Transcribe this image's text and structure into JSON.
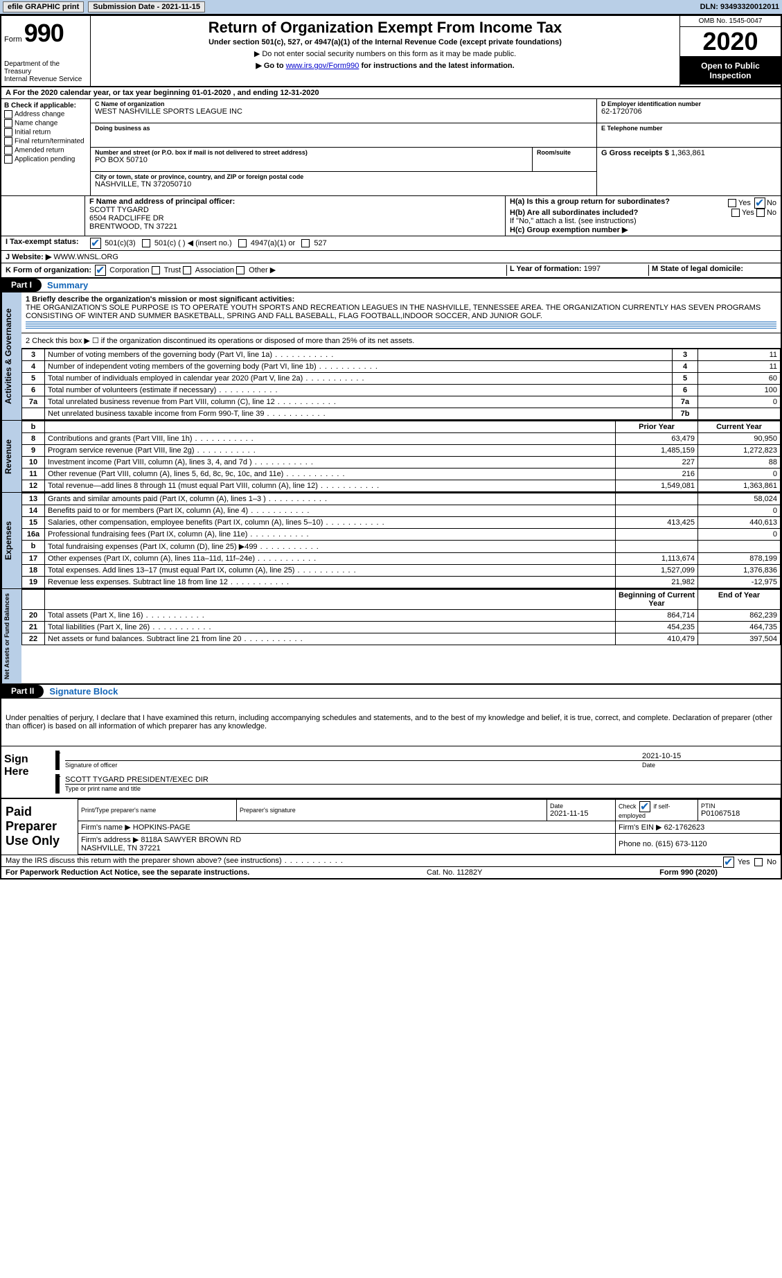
{
  "topbar": {
    "efile": "efile GRAPHIC print",
    "submission_lbl": "Submission Date - 2021-11-15",
    "dln_lbl": "DLN: 93493320012011"
  },
  "header": {
    "form_prefix": "Form",
    "form_no": "990",
    "dept": "Department of the Treasury\nInternal Revenue Service",
    "title": "Return of Organization Exempt From Income Tax",
    "subtitle": "Under section 501(c), 527, or 4947(a)(1) of the Internal Revenue Code (except private foundations)",
    "note1": "▶ Do not enter social security numbers on this form as it may be made public.",
    "note2_pre": "▶ Go to ",
    "note2_link": "www.irs.gov/Form990",
    "note2_post": " for instructions and the latest information.",
    "omb": "OMB No. 1545-0047",
    "year": "2020",
    "open_public": "Open to Public Inspection"
  },
  "line_a": {
    "text": "A For the 2020 calendar year, or tax year beginning 01-01-2020   , and ending 12-31-2020"
  },
  "box_b": {
    "heading": "B Check if applicable:",
    "opts": [
      "Address change",
      "Name change",
      "Initial return",
      "Final return/terminated",
      "Amended return",
      "Application pending"
    ]
  },
  "box_c": {
    "name_lbl": "C Name of organization",
    "name": "WEST NASHVILLE SPORTS LEAGUE INC",
    "dba_lbl": "Doing business as",
    "dba": "",
    "addr_lbl": "Number and street (or P.O. box if mail is not delivered to street address)",
    "room_lbl": "Room/suite",
    "addr": "PO BOX 50710",
    "city_lbl": "City or town, state or province, country, and ZIP or foreign postal code",
    "city": "NASHVILLE, TN  372050710"
  },
  "box_d": {
    "lbl": "D Employer identification number",
    "val": "62-1720706"
  },
  "box_e": {
    "lbl": "E Telephone number",
    "val": ""
  },
  "box_g": {
    "lbl": "G Gross receipts $",
    "val": "1,363,861"
  },
  "box_f": {
    "lbl": "F  Name and address of principal officer:",
    "name": "SCOTT TYGARD",
    "addr1": "6504 RADCLIFFE DR",
    "addr2": "BRENTWOOD, TN  37221"
  },
  "box_h": {
    "a_lbl": "H(a)  Is this a group return for subordinates?",
    "a_yes": "Yes",
    "a_no": "No",
    "b_lbl": "H(b)  Are all subordinates included?",
    "b_yes": "Yes",
    "b_no": "No",
    "b_note": "If \"No,\" attach a list. (see instructions)",
    "c_lbl": "H(c)  Group exemption number ▶"
  },
  "box_i": {
    "lbl": "I  Tax-exempt status:",
    "o1": "501(c)(3)",
    "o2": "501(c) (  ) ◀ (insert no.)",
    "o3": "4947(a)(1) or",
    "o4": "527"
  },
  "box_j": {
    "lbl": "J  Website: ▶",
    "val": "WWW.WNSL.ORG"
  },
  "box_k": {
    "lbl": "K Form of organization:",
    "o1": "Corporation",
    "o2": "Trust",
    "o3": "Association",
    "o4": "Other ▶"
  },
  "box_l": {
    "lbl": "L Year of formation:",
    "val": "1997"
  },
  "box_m": {
    "lbl": "M State of legal domicile:",
    "val": ""
  },
  "part1": {
    "lbl": "Part I",
    "title": "Summary"
  },
  "mission": {
    "line1_lbl": "1  Briefly describe the organization's mission or most significant activities:",
    "text": "THE ORGANIZATION'S SOLE PURPOSE IS TO OPERATE YOUTH SPORTS AND RECREATION LEAGUES IN THE NASHVILLE, TENNESSEE AREA. THE ORGANIZATION CURRENTLY HAS SEVEN PROGRAMS CONSISTING OF WINTER AND SUMMER BASKETBALL, SPRING AND FALL BASEBALL, FLAG FOOTBALL,INDOOR SOCCER, AND JUNIOR GOLF."
  },
  "gov_lines": {
    "l2": "2   Check this box ▶ ☐ if the organization discontinued its operations or disposed of more than 25% of its net assets.",
    "rows": [
      {
        "n": "3",
        "d": "Number of voting members of the governing body (Part VI, line 1a)",
        "b": "3",
        "v": "11"
      },
      {
        "n": "4",
        "d": "Number of independent voting members of the governing body (Part VI, line 1b)",
        "b": "4",
        "v": "11"
      },
      {
        "n": "5",
        "d": "Total number of individuals employed in calendar year 2020 (Part V, line 2a)",
        "b": "5",
        "v": "60"
      },
      {
        "n": "6",
        "d": "Total number of volunteers (estimate if necessary)",
        "b": "6",
        "v": "100"
      },
      {
        "n": "7a",
        "d": "Total unrelated business revenue from Part VIII, column (C), line 12",
        "b": "7a",
        "v": "0"
      },
      {
        "n": "",
        "d": "Net unrelated business taxable income from Form 990-T, line 39",
        "b": "7b",
        "v": ""
      }
    ]
  },
  "headers2": {
    "b": "b",
    "py": "Prior Year",
    "cy": "Current Year"
  },
  "revenue": {
    "lbl": "Revenue",
    "rows": [
      {
        "n": "8",
        "d": "Contributions and grants (Part VIII, line 1h)",
        "py": "63,479",
        "cy": "90,950"
      },
      {
        "n": "9",
        "d": "Program service revenue (Part VIII, line 2g)",
        "py": "1,485,159",
        "cy": "1,272,823"
      },
      {
        "n": "10",
        "d": "Investment income (Part VIII, column (A), lines 3, 4, and 7d )",
        "py": "227",
        "cy": "88"
      },
      {
        "n": "11",
        "d": "Other revenue (Part VIII, column (A), lines 5, 6d, 8c, 9c, 10c, and 11e)",
        "py": "216",
        "cy": "0"
      },
      {
        "n": "12",
        "d": "Total revenue—add lines 8 through 11 (must equal Part VIII, column (A), line 12)",
        "py": "1,549,081",
        "cy": "1,363,861"
      }
    ]
  },
  "expenses": {
    "lbl": "Expenses",
    "rows": [
      {
        "n": "13",
        "d": "Grants and similar amounts paid (Part IX, column (A), lines 1–3 )",
        "py": "",
        "cy": "58,024"
      },
      {
        "n": "14",
        "d": "Benefits paid to or for members (Part IX, column (A), line 4)",
        "py": "",
        "cy": "0"
      },
      {
        "n": "15",
        "d": "Salaries, other compensation, employee benefits (Part IX, column (A), lines 5–10)",
        "py": "413,425",
        "cy": "440,613"
      },
      {
        "n": "16a",
        "d": "Professional fundraising fees (Part IX, column (A), line 11e)",
        "py": "",
        "cy": "0"
      },
      {
        "n": "b",
        "d": "Total fundraising expenses (Part IX, column (D), line 25) ▶499",
        "py": "",
        "cy": ""
      },
      {
        "n": "17",
        "d": "Other expenses (Part IX, column (A), lines 11a–11d, 11f–24e)",
        "py": "1,113,674",
        "cy": "878,199"
      },
      {
        "n": "18",
        "d": "Total expenses. Add lines 13–17 (must equal Part IX, column (A), line 25)",
        "py": "1,527,099",
        "cy": "1,376,836"
      },
      {
        "n": "19",
        "d": "Revenue less expenses. Subtract line 18 from line 12",
        "py": "21,982",
        "cy": "-12,975"
      }
    ]
  },
  "headers3": {
    "py": "Beginning of Current Year",
    "cy": "End of Year"
  },
  "netassets": {
    "lbl": "Net Assets or Fund Balances",
    "rows": [
      {
        "n": "20",
        "d": "Total assets (Part X, line 16)",
        "py": "864,714",
        "cy": "862,239"
      },
      {
        "n": "21",
        "d": "Total liabilities (Part X, line 26)",
        "py": "454,235",
        "cy": "464,735"
      },
      {
        "n": "22",
        "d": "Net assets or fund balances. Subtract line 21 from line 20",
        "py": "410,479",
        "cy": "397,504"
      }
    ]
  },
  "part2": {
    "lbl": "Part II",
    "title": "Signature Block",
    "decl": "Under penalties of perjury, I declare that I have examined this return, including accompanying schedules and statements, and to the best of my knowledge and belief, it is true, correct, and complete. Declaration of preparer (other than officer) is based on all information of which preparer has any knowledge."
  },
  "sign": {
    "here": "Sign Here",
    "sig_lbl": "Signature of officer",
    "date": "2021-10-15",
    "date_lbl": "Date",
    "name": "SCOTT TYGARD  PRESIDENT/EXEC DIR",
    "name_lbl": "Type or print name and title"
  },
  "paid": {
    "here": "Paid Preparer Use Only",
    "h1": "Print/Type preparer's name",
    "h2": "Preparer's signature",
    "h3": "Date",
    "h3v": "2021-11-15",
    "h4": "Check ☑ if self-employed",
    "h5": "PTIN",
    "h5v": "P01067518",
    "firm_lbl": "Firm's name  ▶",
    "firm": "HOPKINS-PAGE",
    "ein_lbl": "Firm's EIN ▶",
    "ein": "62-1762623",
    "addr_lbl": "Firm's address ▶",
    "addr": "8118A SAWYER BROWN RD\nNASHVILLE, TN  37221",
    "phone_lbl": "Phone no.",
    "phone": "(615) 673-1120"
  },
  "discuss": {
    "q": "May the IRS discuss this return with the preparer shown above? (see instructions)",
    "yes": "Yes",
    "no": "No"
  },
  "footer": {
    "l": "For Paperwork Reduction Act Notice, see the separate instructions.",
    "m": "Cat. No. 11282Y",
    "r": "Form 990 (2020)"
  }
}
